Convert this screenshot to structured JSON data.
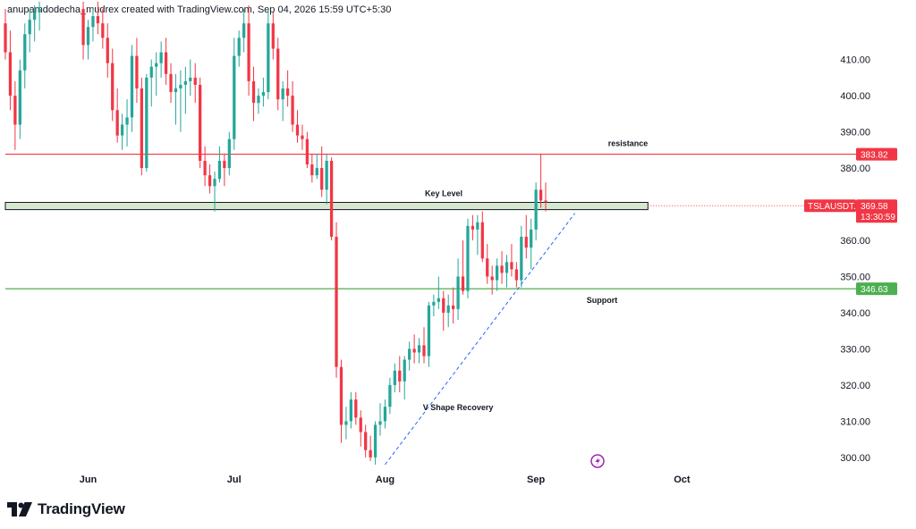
{
  "header": {
    "attribution": "anupamdodecha_mudrex created with TradingView.com, Sep 04, 2026 15:59 UTC+5:30"
  },
  "brand": {
    "name": "TradingView",
    "logo_icon": "tradingview-logo-icon"
  },
  "colors": {
    "up": "#26a69a",
    "down": "#f23645",
    "resistance": "#f23645",
    "support": "#4caf50",
    "keylevel_fill": "#d6e9cf",
    "trendline": "#2962ff"
  },
  "chart_data": {
    "type": "candlestick",
    "symbol": "TSLAUSDT.P",
    "y_axis": {
      "ticks": [
        410,
        400,
        390,
        380,
        370,
        360,
        350,
        340,
        330,
        320,
        310,
        300
      ],
      "tick_labels": [
        "410.00",
        "400.00",
        "390.00",
        "380.00",
        "370.00",
        "360.00",
        "350.00",
        "340.00",
        "330.00",
        "320.00",
        "310.00",
        "300.00"
      ],
      "range": [
        297,
        423
      ]
    },
    "x_axis": {
      "labels": [
        "Jun",
        "Jul",
        "Aug",
        "Sep",
        "Oct"
      ],
      "label_dates": [
        "2026-06-01",
        "2026-07-01",
        "2026-08-01",
        "2026-09-01",
        "2026-10-01"
      ],
      "range": [
        "2026-05-15",
        "2026-10-25"
      ]
    },
    "levels": [
      {
        "name": "resistance",
        "value": 383.82,
        "label": "383.82",
        "text": "resistance"
      },
      {
        "name": "support",
        "value": 346.63,
        "label": "346.63",
        "text": "Support"
      }
    ],
    "key_level": {
      "text": "Key Level",
      "low": 368.5,
      "high": 370.5,
      "end_date": "2026-09-24"
    },
    "last_price": {
      "value": 369.58,
      "label": "369.58",
      "countdown": "13:30:59"
    },
    "trendline": {
      "start": {
        "date": "2026-08-01",
        "value": 298
      },
      "end": {
        "date": "2026-09-09",
        "value": 367.5
      }
    },
    "annotations": [
      {
        "text": "V Shape Recovery",
        "date": "2026-08-16",
        "value": 313
      }
    ],
    "candles": [
      [
        "2026-05-15",
        420,
        424,
        410,
        412
      ],
      [
        "2026-05-16",
        412,
        418,
        396,
        400
      ],
      [
        "2026-05-17",
        400,
        404,
        385,
        392
      ],
      [
        "2026-05-18",
        392,
        410,
        388,
        407
      ],
      [
        "2026-05-19",
        407,
        420,
        402,
        417
      ],
      [
        "2026-05-20",
        417,
        424,
        412,
        421
      ],
      [
        "2026-05-21",
        421,
        425,
        415,
        423
      ],
      [
        "2026-05-22",
        423,
        426,
        418,
        424
      ],
      [
        "2026-05-31",
        424,
        426,
        410,
        414
      ],
      [
        "2026-06-01",
        414,
        421,
        410,
        419
      ],
      [
        "2026-06-02",
        419,
        424,
        415,
        422
      ],
      [
        "2026-06-03",
        422,
        426,
        417,
        420
      ],
      [
        "2026-06-04",
        420,
        424,
        413,
        416
      ],
      [
        "2026-06-05",
        416,
        420,
        405,
        409
      ],
      [
        "2026-06-06",
        409,
        413,
        393,
        396
      ],
      [
        "2026-06-07",
        396,
        402,
        387,
        389
      ],
      [
        "2026-06-08",
        389,
        395,
        385,
        392
      ],
      [
        "2026-06-09",
        392,
        399,
        386,
        394
      ],
      [
        "2026-06-10",
        394,
        414,
        390,
        411
      ],
      [
        "2026-06-11",
        411,
        416,
        398,
        402
      ],
      [
        "2026-06-12",
        402,
        405,
        378,
        380
      ],
      [
        "2026-06-13",
        380,
        406,
        379,
        405
      ],
      [
        "2026-06-14",
        405,
        410,
        397,
        408
      ],
      [
        "2026-06-15",
        408,
        412,
        400,
        409
      ],
      [
        "2026-06-16",
        409,
        415,
        405,
        412
      ],
      [
        "2026-06-17",
        412,
        416,
        403,
        406
      ],
      [
        "2026-06-18",
        406,
        409,
        398,
        401
      ],
      [
        "2026-06-19",
        401,
        406,
        392,
        402
      ],
      [
        "2026-06-20",
        402,
        407,
        390,
        403
      ],
      [
        "2026-06-21",
        403,
        408,
        395,
        404
      ],
      [
        "2026-06-22",
        404,
        410,
        400,
        405
      ],
      [
        "2026-06-23",
        405,
        409,
        398,
        403
      ],
      [
        "2026-06-24",
        403,
        405,
        380,
        382
      ],
      [
        "2026-06-25",
        382,
        386,
        375,
        378
      ],
      [
        "2026-06-26",
        378,
        381,
        373,
        375
      ],
      [
        "2026-06-27",
        375,
        379,
        368,
        377
      ],
      [
        "2026-06-28",
        377,
        386,
        376,
        382
      ],
      [
        "2026-06-29",
        382,
        384,
        375,
        380
      ],
      [
        "2026-06-30",
        380,
        390,
        378,
        388
      ],
      [
        "2026-07-01",
        388,
        416,
        385,
        411
      ],
      [
        "2026-07-02",
        411,
        418,
        408,
        416
      ],
      [
        "2026-07-03",
        416,
        424,
        412,
        420
      ],
      [
        "2026-07-04",
        420,
        425,
        400,
        404
      ],
      [
        "2026-07-05",
        404,
        408,
        393,
        398
      ],
      [
        "2026-07-06",
        398,
        402,
        395,
        400
      ],
      [
        "2026-07-07",
        400,
        405,
        397,
        401
      ],
      [
        "2026-07-08",
        401,
        424,
        399,
        420
      ],
      [
        "2026-07-09",
        420,
        423,
        410,
        413
      ],
      [
        "2026-07-10",
        413,
        416,
        396,
        399
      ],
      [
        "2026-07-11",
        399,
        404,
        393,
        402
      ],
      [
        "2026-07-12",
        402,
        407,
        397,
        400
      ],
      [
        "2026-07-13",
        400,
        404,
        390,
        392
      ],
      [
        "2026-07-14",
        392,
        396,
        387,
        389
      ],
      [
        "2026-07-15",
        389,
        392,
        385,
        388
      ],
      [
        "2026-07-16",
        388,
        390,
        380,
        381
      ],
      [
        "2026-07-17",
        381,
        384,
        376,
        378
      ],
      [
        "2026-07-18",
        378,
        384,
        377,
        380
      ],
      [
        "2026-07-19",
        380,
        386,
        372,
        374
      ],
      [
        "2026-07-20",
        374,
        384,
        370,
        382
      ],
      [
        "2026-07-21",
        382,
        383,
        360,
        361
      ],
      [
        "2026-07-22",
        361,
        365,
        322,
        325
      ],
      [
        "2026-07-23",
        325,
        327,
        304,
        309
      ],
      [
        "2026-07-24",
        309,
        314,
        305,
        310
      ],
      [
        "2026-07-25",
        310,
        318,
        308,
        316
      ],
      [
        "2026-07-26",
        316,
        318,
        309,
        311
      ],
      [
        "2026-07-27",
        311,
        313,
        303,
        307
      ],
      [
        "2026-07-28",
        307,
        309,
        300,
        302
      ],
      [
        "2026-07-29",
        302,
        306,
        299,
        300
      ],
      [
        "2026-07-30",
        300,
        310,
        298,
        309
      ],
      [
        "2026-07-31",
        309,
        315,
        306,
        310
      ],
      [
        "2026-08-01",
        310,
        316,
        308,
        314
      ],
      [
        "2026-08-02",
        314,
        322,
        312,
        320
      ],
      [
        "2026-08-03",
        320,
        326,
        318,
        324
      ],
      [
        "2026-08-04",
        324,
        328,
        318,
        321
      ],
      [
        "2026-08-05",
        321,
        328,
        316,
        327
      ],
      [
        "2026-08-06",
        327,
        332,
        324,
        330
      ],
      [
        "2026-08-07",
        330,
        334,
        326,
        329
      ],
      [
        "2026-08-08",
        329,
        333,
        326,
        331
      ],
      [
        "2026-08-09",
        331,
        336,
        326,
        328
      ],
      [
        "2026-08-10",
        328,
        343,
        325,
        342
      ],
      [
        "2026-08-11",
        342,
        345,
        339,
        343
      ],
      [
        "2026-08-12",
        343,
        350,
        341,
        344
      ],
      [
        "2026-08-13",
        344,
        346,
        335,
        340
      ],
      [
        "2026-08-14",
        340,
        345,
        336,
        342
      ],
      [
        "2026-08-15",
        342,
        347,
        337,
        341
      ],
      [
        "2026-08-16",
        341,
        355,
        338,
        350
      ],
      [
        "2026-08-17",
        350,
        360,
        345,
        346
      ],
      [
        "2026-08-18",
        346,
        366,
        344,
        364
      ],
      [
        "2026-08-19",
        364,
        367,
        360,
        363
      ],
      [
        "2026-08-20",
        363,
        367,
        356,
        365
      ],
      [
        "2026-08-21",
        365,
        368,
        354,
        355
      ],
      [
        "2026-08-22",
        355,
        359,
        348,
        350
      ],
      [
        "2026-08-23",
        350,
        353,
        345,
        349
      ],
      [
        "2026-08-24",
        349,
        355,
        346,
        353
      ],
      [
        "2026-08-25",
        353,
        357,
        348,
        351
      ],
      [
        "2026-08-26",
        351,
        356,
        347,
        354
      ],
      [
        "2026-08-27",
        354,
        359,
        350,
        352
      ],
      [
        "2026-08-28",
        352,
        354,
        347,
        349
      ],
      [
        "2026-08-29",
        349,
        364,
        347,
        361
      ],
      [
        "2026-08-30",
        361,
        367,
        355,
        358
      ],
      [
        "2026-08-31",
        358,
        366,
        352,
        363
      ],
      [
        "2026-09-01",
        363,
        376,
        360,
        374
      ],
      [
        "2026-09-02",
        374,
        384,
        369,
        371
      ],
      [
        "2026-09-03",
        371,
        376,
        368,
        370.5
      ]
    ]
  }
}
